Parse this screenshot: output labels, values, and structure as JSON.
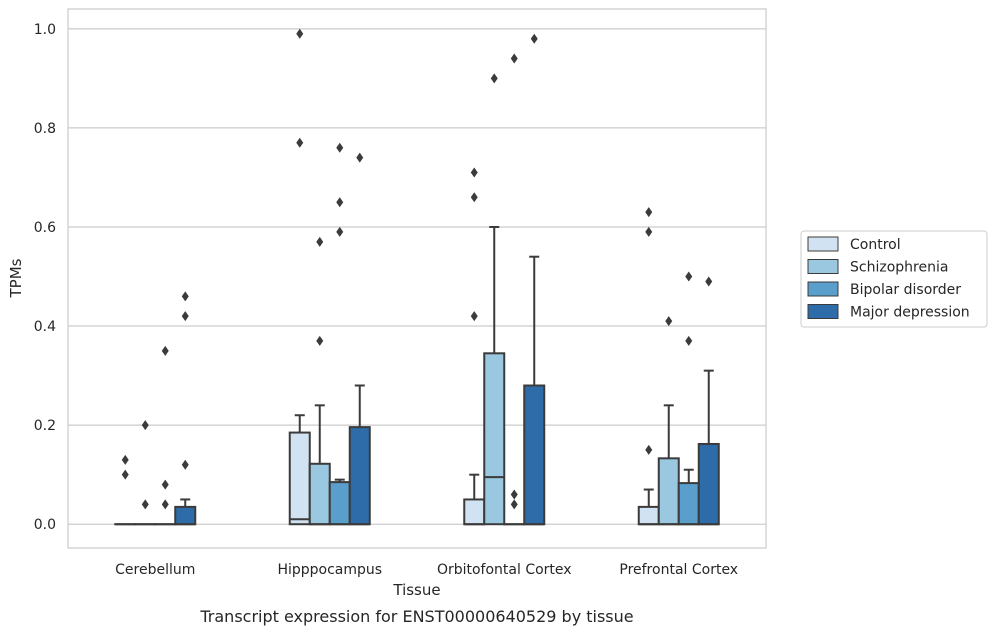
{
  "chart_data": {
    "type": "box",
    "xlabel": "Tissue",
    "ylabel": "TPMs",
    "caption": "Transcript expression for ENST00000640529 by tissue",
    "categories": [
      "Cerebellum",
      "Hipppocampus",
      "Orbitofontal Cortex",
      "Prefrontal Cortex"
    ],
    "ylim": [
      -0.048,
      1.04
    ],
    "yticks": [
      "0.0",
      "0.2",
      "0.4",
      "0.6",
      "0.8",
      "1.0"
    ],
    "grid": true,
    "legend_position": "right",
    "series": [
      {
        "name": "Control",
        "color": "#d1e2f2",
        "boxes": [
          {
            "q1": 0,
            "median": 0,
            "q3": 0,
            "whisker_low": 0,
            "whisker_high": 0,
            "outliers": [
              0.1,
              0.13
            ]
          },
          {
            "q1": 0,
            "median": 0.01,
            "q3": 0.185,
            "whisker_low": 0,
            "whisker_high": 0.22,
            "outliers": [
              0.77,
              0.99
            ]
          },
          {
            "q1": 0,
            "median": 0,
            "q3": 0.05,
            "whisker_low": 0,
            "whisker_high": 0.1,
            "outliers": [
              0.42,
              0.66,
              0.71
            ]
          },
          {
            "q1": 0,
            "median": 0,
            "q3": 0.035,
            "whisker_low": 0,
            "whisker_high": 0.07,
            "outliers": [
              0.15,
              0.59,
              0.63
            ]
          }
        ]
      },
      {
        "name": "Schizophrenia",
        "color": "#9ac8e0",
        "boxes": [
          {
            "q1": 0,
            "median": 0,
            "q3": 0,
            "whisker_low": 0,
            "whisker_high": 0,
            "outliers": [
              0.04,
              0.2
            ]
          },
          {
            "q1": 0,
            "median": 0,
            "q3": 0.122,
            "whisker_low": 0,
            "whisker_high": 0.24,
            "outliers": [
              0.37,
              0.57
            ]
          },
          {
            "q1": 0,
            "median": 0.095,
            "q3": 0.345,
            "whisker_low": 0,
            "whisker_high": 0.6,
            "outliers": [
              0.9
            ]
          },
          {
            "q1": 0,
            "median": 0,
            "q3": 0.133,
            "whisker_low": 0,
            "whisker_high": 0.24,
            "outliers": [
              0.41
            ]
          }
        ]
      },
      {
        "name": "Bipolar disorder",
        "color": "#5a9ecc",
        "boxes": [
          {
            "q1": 0,
            "median": 0,
            "q3": 0,
            "whisker_low": 0,
            "whisker_high": 0,
            "outliers": [
              0.04,
              0.08,
              0.35
            ]
          },
          {
            "q1": 0,
            "median": 0,
            "q3": 0.085,
            "whisker_low": 0,
            "whisker_high": 0.09,
            "outliers": [
              0.59,
              0.65,
              0.76
            ]
          },
          {
            "q1": 0,
            "median": 0,
            "q3": 0,
            "whisker_low": 0,
            "whisker_high": 0,
            "outliers": [
              0.04,
              0.06,
              0.94
            ]
          },
          {
            "q1": 0,
            "median": 0,
            "q3": 0.083,
            "whisker_low": 0,
            "whisker_high": 0.11,
            "outliers": [
              0.37,
              0.5
            ]
          }
        ]
      },
      {
        "name": "Major depression",
        "color": "#2d6ca9",
        "boxes": [
          {
            "q1": 0,
            "median": 0,
            "q3": 0.035,
            "whisker_low": 0,
            "whisker_high": 0.05,
            "outliers": [
              0.12,
              0.42,
              0.46
            ]
          },
          {
            "q1": 0,
            "median": 0,
            "q3": 0.196,
            "whisker_low": 0,
            "whisker_high": 0.28,
            "outliers": [
              0.74
            ]
          },
          {
            "q1": 0,
            "median": 0,
            "q3": 0.28,
            "whisker_low": 0,
            "whisker_high": 0.54,
            "outliers": [
              0.98
            ]
          },
          {
            "q1": 0,
            "median": 0,
            "q3": 0.162,
            "whisker_low": 0,
            "whisker_high": 0.31,
            "outliers": [
              0.49
            ]
          }
        ]
      }
    ]
  }
}
